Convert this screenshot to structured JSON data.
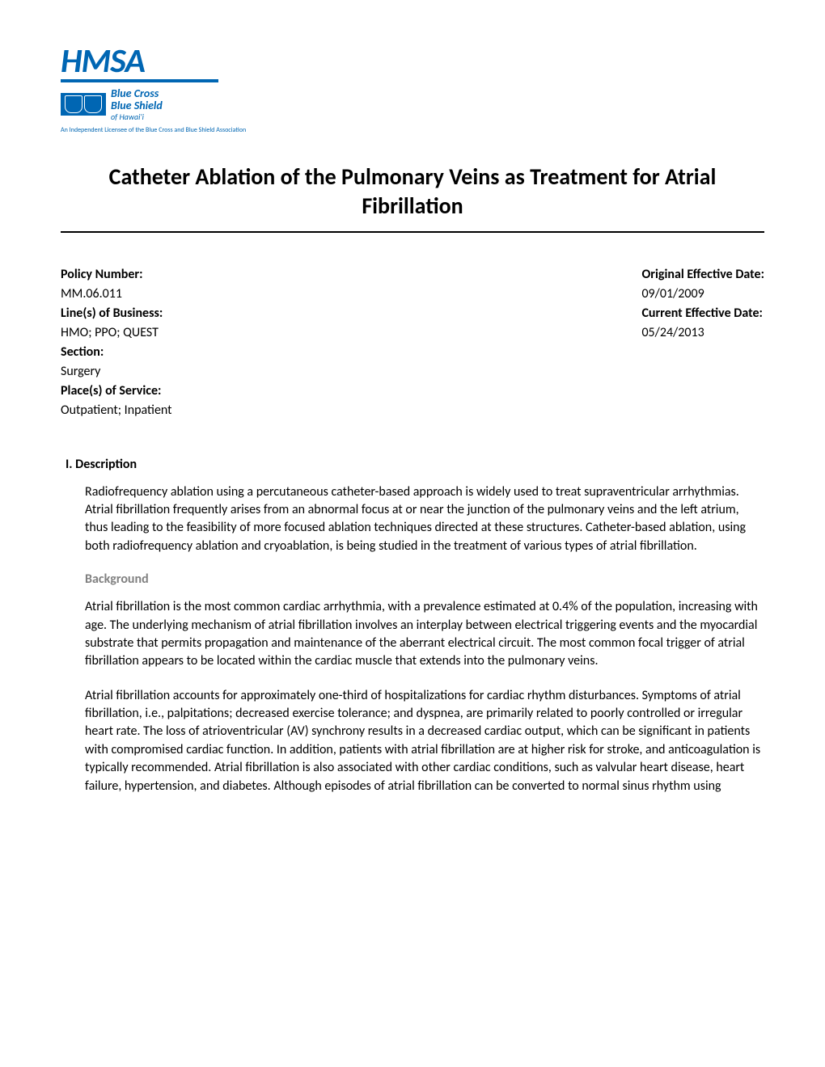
{
  "logo": {
    "brand": "HMSA",
    "bcbs_line1": "Blue Cross",
    "bcbs_line2": "Blue Shield",
    "bcbs_line3": "of Hawai'i",
    "licensee": "An Independent Licensee of the Blue Cross and Blue Shield Association"
  },
  "title": "Catheter Ablation of the Pulmonary Veins as Treatment for Atrial Fibrillation",
  "info_left": {
    "policy_number_label": "Policy Number:",
    "policy_number_value": "MM.06.011",
    "lines_label": "Line(s) of Business:",
    "lines_value": "HMO; PPO; QUEST",
    "section_label": "Section:",
    "section_value": "Surgery",
    "places_label": "Place(s) of Service:",
    "places_value": "Outpatient; Inpatient"
  },
  "info_right": {
    "orig_date_label": "Original Effective Date:",
    "orig_date_value": "09/01/2009",
    "curr_date_label": "Current Effective Date:",
    "curr_date_value": "05/24/2013"
  },
  "section1": {
    "heading": "I.   Description",
    "para1": "Radiofrequency ablation using a percutaneous catheter-based approach is widely used to treat supraventricular arrhythmias. Atrial fibrillation frequently arises from an abnormal focus at or near the junction of the pulmonary veins and the left atrium, thus leading to the feasibility of more focused ablation techniques directed at these structures. Catheter-based ablation, using both radiofrequency ablation and cryoablation, is being studied in the treatment of various types of atrial fibrillation.",
    "subheading": "Background",
    "para2": "Atrial fibrillation is the most common cardiac arrhythmia, with a prevalence estimated at 0.4% of the population, increasing with age. The underlying mechanism of atrial fibrillation involves an interplay between electrical triggering events and the myocardial substrate that permits propagation and maintenance of the aberrant electrical circuit. The most common focal trigger of atrial fibrillation appears to be located within the cardiac muscle that extends into the pulmonary veins.",
    "para3": "Atrial fibrillation accounts for approximately one-third of hospitalizations for cardiac rhythm disturbances. Symptoms of atrial fibrillation, i.e., palpitations; decreased exercise tolerance; and dyspnea, are primarily related to poorly controlled or irregular heart rate. The loss of atrioventricular (AV) synchrony results in a decreased cardiac output, which can be significant in patients with compromised cardiac function. In addition, patients with atrial fibrillation are at higher risk for stroke, and anticoagulation is typically recommended. Atrial fibrillation is also associated with other cardiac conditions, such as valvular heart disease, heart failure, hypertension, and diabetes. Although episodes of atrial fibrillation can be converted to normal sinus rhythm using"
  }
}
